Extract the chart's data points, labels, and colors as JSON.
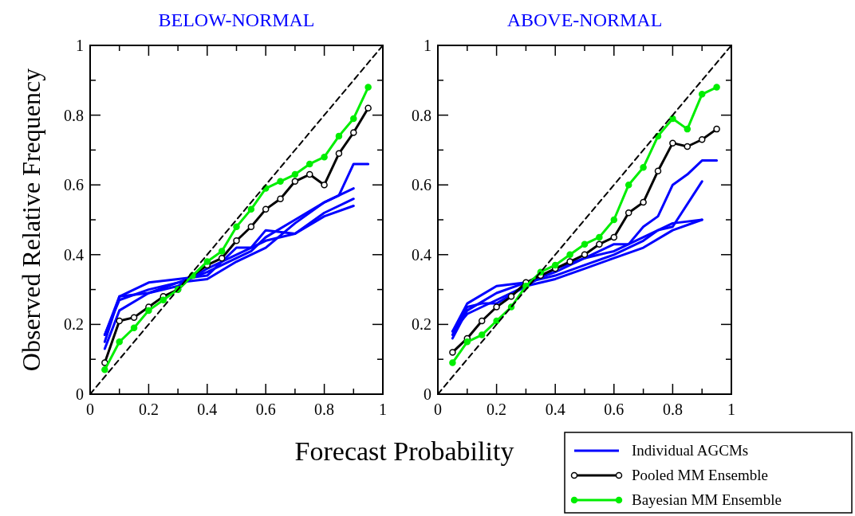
{
  "chart_data": [
    {
      "type": "line",
      "title": "BELOW-NORMAL",
      "xlabel": "Forecast Probability",
      "ylabel": "Observed Relative Frequency",
      "xlim": [
        0,
        1
      ],
      "ylim": [
        0,
        1
      ],
      "xticks": [
        0,
        {
          "value": 0.1,
          "label": null
        },
        0.2,
        {
          "value": 0.3,
          "label": null
        },
        0.4,
        {
          "value": 0.5,
          "label": null
        },
        0.6,
        {
          "value": 0.7,
          "label": null
        },
        0.8,
        {
          "value": 0.9,
          "label": null
        },
        1
      ],
      "yticks": [
        0,
        {
          "value": 0.1,
          "label": null
        },
        0.2,
        {
          "value": 0.3,
          "label": null
        },
        0.4,
        {
          "value": 0.5,
          "label": null
        },
        0.6,
        {
          "value": 0.7,
          "label": null
        },
        0.8,
        {
          "value": 0.9,
          "label": null
        },
        1
      ],
      "legend": false,
      "grid": false,
      "series": [
        {
          "color": "#0000ff",
          "marker": "none",
          "x": [
            0.05,
            0.1,
            0.2,
            0.3,
            0.4,
            0.5,
            0.55,
            0.6,
            0.7,
            0.8,
            0.9
          ],
          "values": [
            0.17,
            0.28,
            0.32,
            0.33,
            0.34,
            0.42,
            0.42,
            0.47,
            0.46,
            0.51,
            0.54
          ]
        },
        {
          "color": "#0000ff",
          "marker": "none",
          "x": [
            0.05,
            0.1,
            0.2,
            0.3,
            0.4,
            0.5,
            0.6,
            0.7,
            0.8,
            0.85,
            0.9,
            0.95
          ],
          "values": [
            0.13,
            0.24,
            0.29,
            0.32,
            0.33,
            0.38,
            0.42,
            0.49,
            0.55,
            0.57,
            0.66,
            0.66
          ]
        },
        {
          "color": "#0000ff",
          "marker": "none",
          "x": [
            0.05,
            0.1,
            0.2,
            0.3,
            0.4,
            0.5,
            0.55,
            0.6,
            0.7,
            0.8,
            0.9
          ],
          "values": [
            0.17,
            0.27,
            0.3,
            0.32,
            0.35,
            0.39,
            0.41,
            0.45,
            0.5,
            0.55,
            0.59
          ]
        },
        {
          "color": "#0000ff",
          "marker": "none",
          "x": [
            0.05,
            0.1,
            0.2,
            0.3,
            0.4,
            0.5,
            0.6,
            0.7,
            0.8,
            0.9
          ],
          "values": [
            0.15,
            0.28,
            0.29,
            0.31,
            0.36,
            0.4,
            0.44,
            0.46,
            0.52,
            0.56
          ]
        },
        {
          "color": "#000000",
          "marker": "circle",
          "x": [
            0.05,
            0.1,
            0.15,
            0.2,
            0.25,
            0.3,
            0.35,
            0.4,
            0.45,
            0.5,
            0.55,
            0.6,
            0.65,
            0.7,
            0.75,
            0.8,
            0.85,
            0.9,
            0.95
          ],
          "values": [
            0.09,
            0.21,
            0.22,
            0.25,
            0.28,
            0.3,
            0.34,
            0.37,
            0.39,
            0.44,
            0.48,
            0.53,
            0.56,
            0.61,
            0.63,
            0.6,
            0.69,
            0.75,
            0.82
          ]
        },
        {
          "color": "#00ee00",
          "marker": "circle",
          "x": [
            0.05,
            0.1,
            0.15,
            0.2,
            0.25,
            0.3,
            0.35,
            0.4,
            0.45,
            0.5,
            0.55,
            0.6,
            0.65,
            0.7,
            0.75,
            0.8,
            0.85,
            0.9,
            0.95
          ],
          "values": [
            0.07,
            0.15,
            0.19,
            0.24,
            0.27,
            0.3,
            0.34,
            0.38,
            0.41,
            0.48,
            0.53,
            0.59,
            0.61,
            0.63,
            0.66,
            0.68,
            0.74,
            0.79,
            0.88
          ]
        },
        {
          "color": "#000000",
          "marker": "none",
          "line_style": "dashed",
          "x": [
            0,
            1
          ],
          "values": [
            0,
            1
          ]
        }
      ]
    },
    {
      "type": "line",
      "title": "ABOVE-NORMAL",
      "xlim": [
        0,
        1
      ],
      "ylim": [
        0,
        1
      ],
      "xticks": [
        0,
        {
          "value": 0.1,
          "label": null
        },
        0.2,
        {
          "value": 0.3,
          "label": null
        },
        0.4,
        {
          "value": 0.5,
          "label": null
        },
        0.6,
        {
          "value": 0.7,
          "label": null
        },
        0.8,
        {
          "value": 0.9,
          "label": null
        },
        1
      ],
      "yticks": [
        0,
        {
          "value": 0.1,
          "label": null
        },
        0.2,
        {
          "value": 0.3,
          "label": null
        },
        0.4,
        {
          "value": 0.5,
          "label": null
        },
        0.6,
        {
          "value": 0.7,
          "label": null
        },
        0.8,
        {
          "value": 0.9,
          "label": null
        },
        1
      ],
      "legend": "bottom right",
      "grid": false,
      "series": [
        {
          "name": "Individual AGCMs",
          "color": "#0000ff",
          "marker": "none",
          "x": [
            0.05,
            0.1,
            0.2,
            0.3,
            0.4,
            0.5,
            0.6,
            0.65,
            0.7,
            0.75,
            0.8,
            0.85,
            0.9,
            0.95
          ],
          "values": [
            0.18,
            0.26,
            0.31,
            0.32,
            0.35,
            0.39,
            0.43,
            0.43,
            0.48,
            0.51,
            0.6,
            0.63,
            0.67,
            0.67
          ]
        },
        {
          "color": "#0000ff",
          "marker": "none",
          "x": [
            0.05,
            0.1,
            0.2,
            0.3,
            0.4,
            0.5,
            0.6,
            0.7,
            0.75,
            0.8,
            0.9
          ],
          "values": [
            0.16,
            0.24,
            0.29,
            0.32,
            0.34,
            0.37,
            0.4,
            0.44,
            0.47,
            0.48,
            0.61
          ]
        },
        {
          "color": "#0000ff",
          "marker": "none",
          "x": [
            0.05,
            0.1,
            0.15,
            0.2,
            0.3,
            0.4,
            0.5,
            0.6,
            0.7,
            0.8,
            0.9
          ],
          "values": [
            0.17,
            0.25,
            0.26,
            0.26,
            0.31,
            0.33,
            0.36,
            0.39,
            0.42,
            0.47,
            0.5
          ]
        },
        {
          "color": "#0000ff",
          "marker": "none",
          "x": [
            0.05,
            0.1,
            0.2,
            0.3,
            0.4,
            0.5,
            0.6,
            0.7,
            0.8,
            0.9
          ],
          "values": [
            0.18,
            0.23,
            0.27,
            0.31,
            0.36,
            0.39,
            0.41,
            0.45,
            0.49,
            0.5
          ]
        },
        {
          "name": "Pooled MM Ensemble",
          "color": "#000000",
          "marker": "circle",
          "x": [
            0.05,
            0.1,
            0.15,
            0.2,
            0.25,
            0.3,
            0.35,
            0.4,
            0.45,
            0.5,
            0.55,
            0.6,
            0.65,
            0.7,
            0.75,
            0.8,
            0.85,
            0.9,
            0.95
          ],
          "values": [
            0.12,
            0.16,
            0.21,
            0.25,
            0.28,
            0.32,
            0.34,
            0.36,
            0.38,
            0.4,
            0.43,
            0.45,
            0.52,
            0.55,
            0.64,
            0.72,
            0.71,
            0.73,
            0.76
          ]
        },
        {
          "name": "Bayesian MM Ensemble",
          "color": "#00ee00",
          "marker": "circle",
          "x": [
            0.05,
            0.1,
            0.15,
            0.2,
            0.25,
            0.3,
            0.35,
            0.4,
            0.45,
            0.5,
            0.55,
            0.6,
            0.65,
            0.7,
            0.75,
            0.8,
            0.85,
            0.9,
            0.95
          ],
          "values": [
            0.09,
            0.15,
            0.17,
            0.21,
            0.25,
            0.31,
            0.35,
            0.37,
            0.4,
            0.43,
            0.45,
            0.5,
            0.6,
            0.65,
            0.74,
            0.79,
            0.76,
            0.86,
            0.88
          ]
        },
        {
          "color": "#000000",
          "marker": "none",
          "line_style": "dashed",
          "x": [
            0,
            1
          ],
          "values": [
            0,
            1
          ]
        }
      ]
    }
  ]
}
